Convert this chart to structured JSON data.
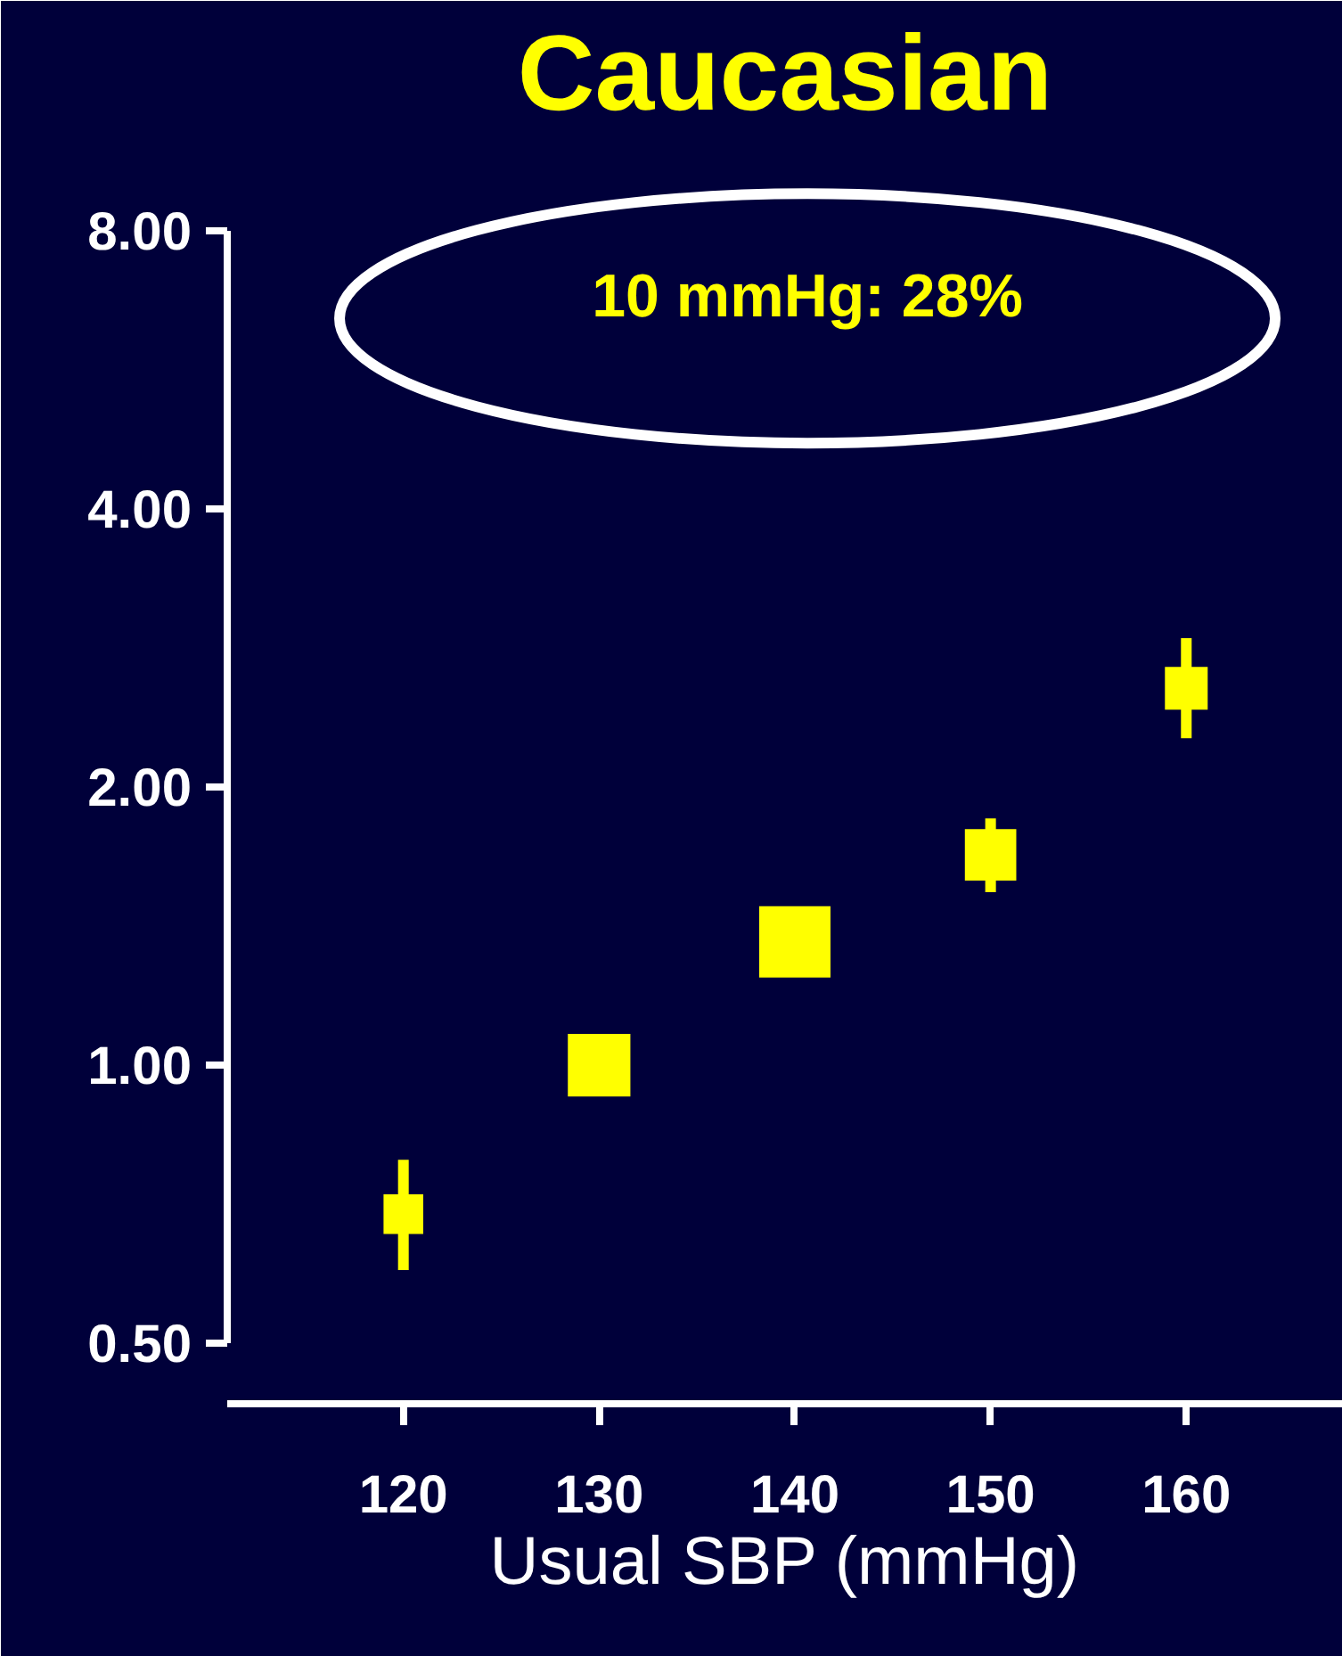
{
  "chart_data": {
    "type": "bubble",
    "title": "Caucasian",
    "xlabel": "Usual SBP (mmHg)",
    "x": [
      120,
      130,
      140,
      150,
      160
    ],
    "values": [
      0.69,
      1.0,
      1.36,
      1.69,
      2.56
    ],
    "errors": [
      [
        0.6,
        0.79
      ],
      null,
      null,
      [
        1.54,
        1.85
      ],
      [
        2.26,
        2.9
      ]
    ],
    "sizes": [
      0.31,
      0.77,
      1,
      0.52,
      0.36
    ],
    "color": "#ffff00",
    "marker": "square",
    "log": "y",
    "grid": false,
    "xlim": [
      111,
      168
    ],
    "xticks": [
      120,
      130,
      140,
      150,
      160
    ],
    "ylim": [
      0.43,
      10
    ],
    "yticks": [
      {
        "value": 0.5,
        "label": "0.50"
      },
      {
        "value": 1,
        "label": "1.00"
      },
      {
        "value": 2,
        "label": "2.00"
      },
      {
        "value": 4,
        "label": "4.00"
      },
      {
        "value": 8,
        "label": "8.00"
      }
    ],
    "annotations": [
      "10 mmHg: 28%"
    ]
  }
}
